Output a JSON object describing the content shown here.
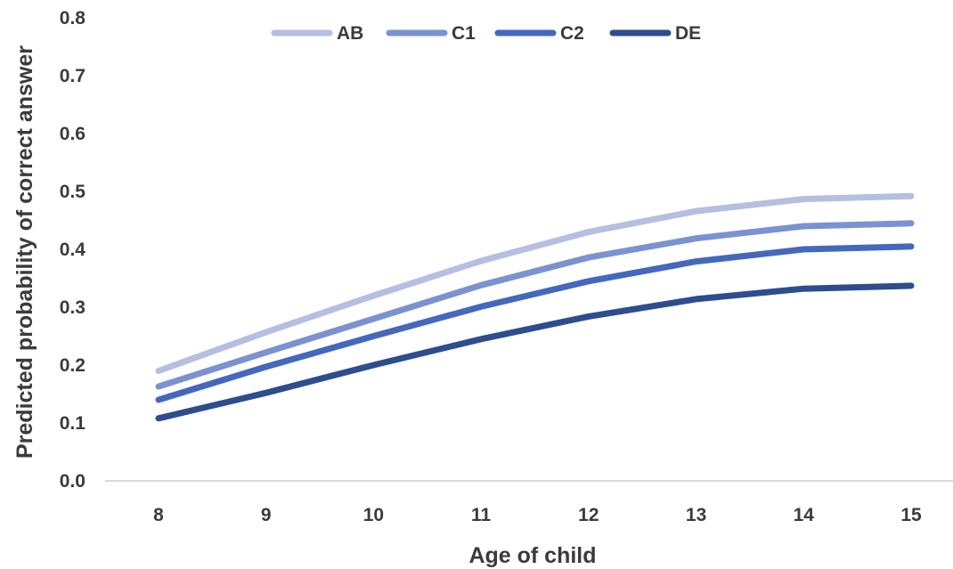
{
  "chart_data": {
    "type": "line",
    "xlabel": "Age of child",
    "ylabel": "Predicted probability of correct answer",
    "x": [
      8,
      9,
      10,
      11,
      12,
      13,
      14,
      15
    ],
    "ylim": [
      0.0,
      0.8
    ],
    "yticks": [
      "0.0",
      "0.1",
      "0.2",
      "0.3",
      "0.4",
      "0.5",
      "0.6",
      "0.7",
      "0.8"
    ],
    "grid": false,
    "legend_position": "top",
    "series": [
      {
        "name": "AB",
        "color": "#b4bfe1",
        "values": [
          0.19,
          0.257,
          0.32,
          0.38,
          0.43,
          0.466,
          0.487,
          0.492
        ]
      },
      {
        "name": "C1",
        "color": "#7b92d2",
        "values": [
          0.163,
          0.222,
          0.28,
          0.338,
          0.386,
          0.419,
          0.44,
          0.445
        ]
      },
      {
        "name": "C2",
        "color": "#4468bd",
        "values": [
          0.14,
          0.197,
          0.25,
          0.301,
          0.345,
          0.379,
          0.4,
          0.405
        ]
      },
      {
        "name": "DE",
        "color": "#2d4d8e",
        "values": [
          0.108,
          0.152,
          0.2,
          0.245,
          0.284,
          0.314,
          0.332,
          0.337
        ]
      }
    ]
  }
}
